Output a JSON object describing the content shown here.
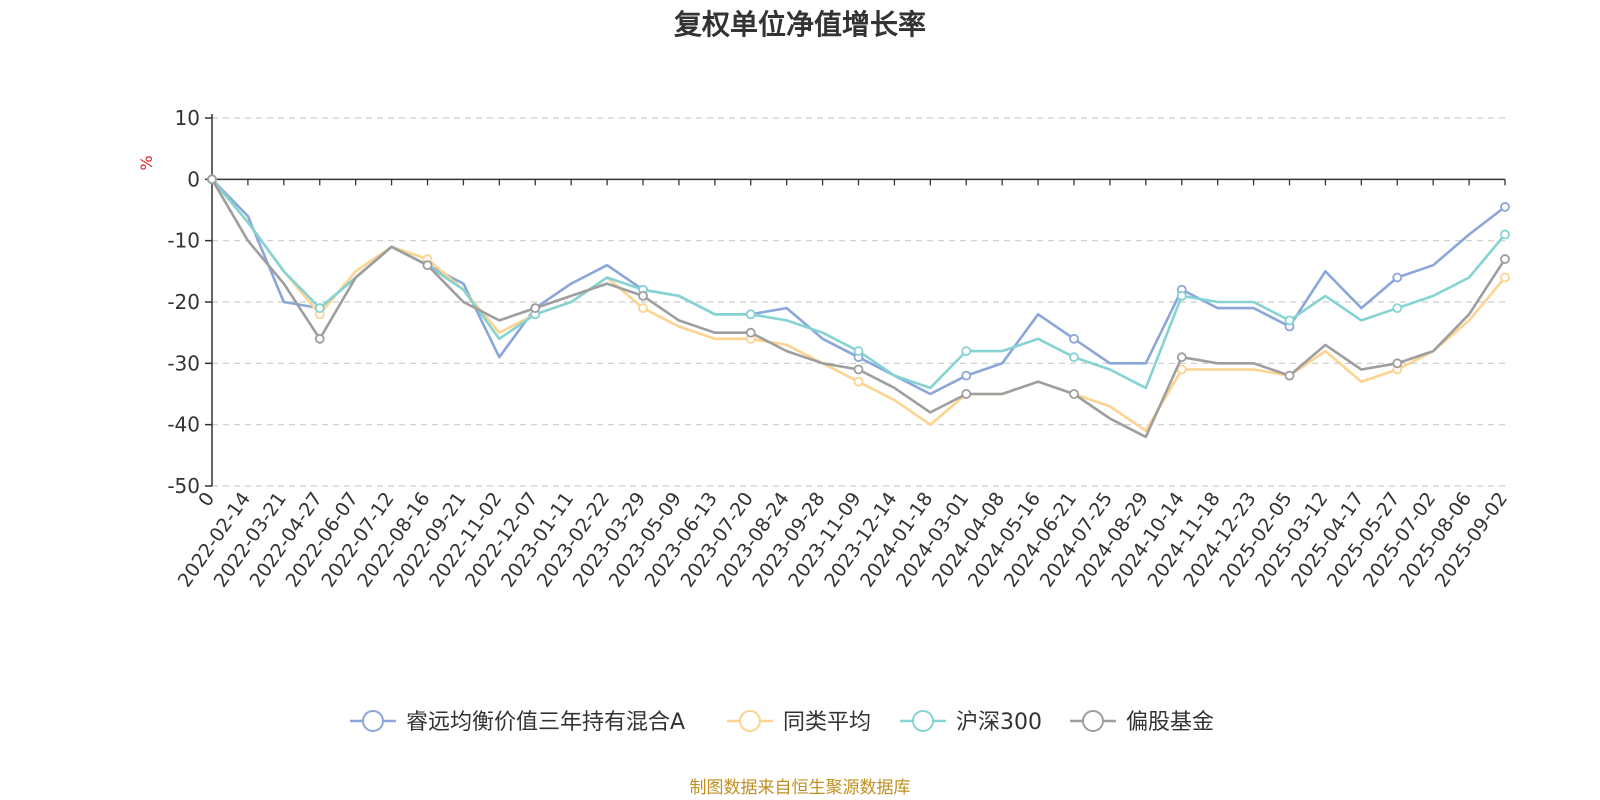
{
  "chart_data": {
    "type": "line",
    "title": "复权单位净值增长率",
    "ylabel": "%",
    "ylim": [
      -50,
      10
    ],
    "yticks": [
      10,
      0,
      -10,
      -20,
      -30,
      -40,
      -50
    ],
    "x_labels": [
      "0",
      "2022-02-14",
      "2022-03-21",
      "2022-04-27",
      "2022-06-07",
      "2022-07-12",
      "2022-08-16",
      "2022-09-21",
      "2022-11-02",
      "2022-12-07",
      "2023-01-11",
      "2023-02-22",
      "2023-03-29",
      "2023-05-09",
      "2023-06-13",
      "2023-07-20",
      "2023-08-24",
      "2023-09-28",
      "2023-11-09",
      "2023-12-14",
      "2024-01-18",
      "2024-03-01",
      "2024-04-08",
      "2024-05-16",
      "2024-06-21",
      "2024-07-25",
      "2024-08-29",
      "2024-10-14",
      "2024-11-18",
      "2024-12-23",
      "2025-02-05",
      "2025-03-12",
      "2025-04-17",
      "2025-05-27",
      "2025-07-02",
      "2025-08-06",
      "2025-09-02"
    ],
    "grid": true,
    "legend_position": "bottom",
    "series": [
      {
        "name": "睿远均衡价值三年持有混合A",
        "color": "#8ba6d9",
        "values": [
          0,
          -6,
          -20,
          -21,
          -16,
          -11,
          -14,
          -17,
          -29,
          -21,
          -17,
          -14,
          -18,
          -19,
          -22,
          -22,
          -21,
          -26,
          -29,
          -32,
          -35,
          -32,
          -30,
          -22,
          -26,
          -30,
          -30,
          -18,
          -21,
          -21,
          -24,
          -15,
          -21,
          -16,
          -14,
          -9,
          -4.5
        ]
      },
      {
        "name": "同类平均",
        "color": "#fdd38f",
        "values": [
          0,
          -7,
          -15,
          -22,
          -15,
          -11,
          -13,
          -18,
          -25,
          -22,
          -20,
          -16,
          -21,
          -24,
          -26,
          -26,
          -27,
          -30,
          -33,
          -36,
          -40,
          -35,
          -35,
          -33,
          -35,
          -37,
          -41,
          -31,
          -31,
          -31,
          -32,
          -28,
          -33,
          -31,
          -28,
          -23,
          -16
        ]
      },
      {
        "name": "沪深300",
        "color": "#85d3d2",
        "values": [
          0,
          -7,
          -15,
          -21,
          -16,
          -11,
          -14,
          -18,
          -26,
          -22,
          -20,
          -16,
          -18,
          -19,
          -22,
          -22,
          -23,
          -25,
          -28,
          -32,
          -34,
          -28,
          -28,
          -26,
          -29,
          -31,
          -34,
          -19,
          -20,
          -20,
          -23,
          -19,
          -23,
          -21,
          -19,
          -16,
          -9
        ]
      },
      {
        "name": "偏股基金",
        "color": "#9e9e9e",
        "values": [
          0,
          -10,
          -17,
          -26,
          -16,
          -11,
          -14,
          -20,
          -23,
          -21,
          -19,
          -17,
          -19,
          -23,
          -25,
          -25,
          -28,
          -30,
          -31,
          -34,
          -38,
          -35,
          -35,
          -33,
          -35,
          -39,
          -42,
          -29,
          -30,
          -30,
          -32,
          -27,
          -31,
          -30,
          -28,
          -22,
          -13
        ]
      }
    ],
    "footer": "制图数据来自恒生聚源数据库"
  }
}
